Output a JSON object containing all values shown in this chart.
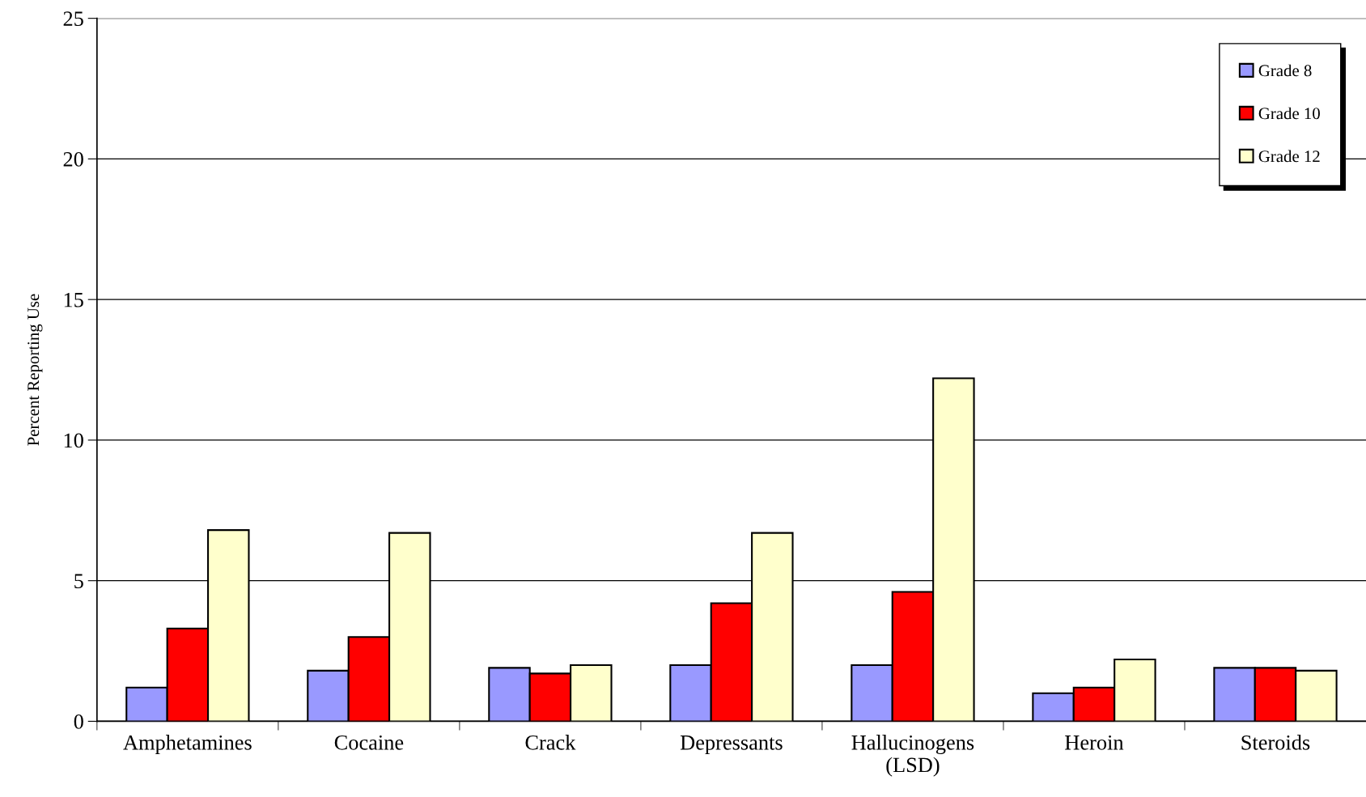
{
  "chart_data": {
    "type": "bar",
    "ylabel": "Percent Reporting Use",
    "categories": [
      "Amphetamines",
      "Cocaine",
      "Crack",
      "Depressants",
      "Hallucinogens\n(LSD)",
      "Heroin",
      "Steroids"
    ],
    "series": [
      {
        "name": "Grade 8",
        "color": "#9999ff",
        "values": [
          1.2,
          1.8,
          1.9,
          2.0,
          2.0,
          1.0,
          1.9
        ]
      },
      {
        "name": "Grade 10",
        "color": "#ff0000",
        "values": [
          3.3,
          3.0,
          1.7,
          4.2,
          4.6,
          1.2,
          1.9
        ]
      },
      {
        "name": "Grade 12",
        "color": "#ffffcc",
        "values": [
          6.8,
          6.7,
          2.0,
          6.7,
          12.2,
          2.2,
          1.8
        ]
      }
    ],
    "ylim": [
      0,
      25
    ],
    "yticks": [
      0,
      5,
      10,
      15,
      20,
      25
    ],
    "grid": "y",
    "legend": "top right"
  }
}
